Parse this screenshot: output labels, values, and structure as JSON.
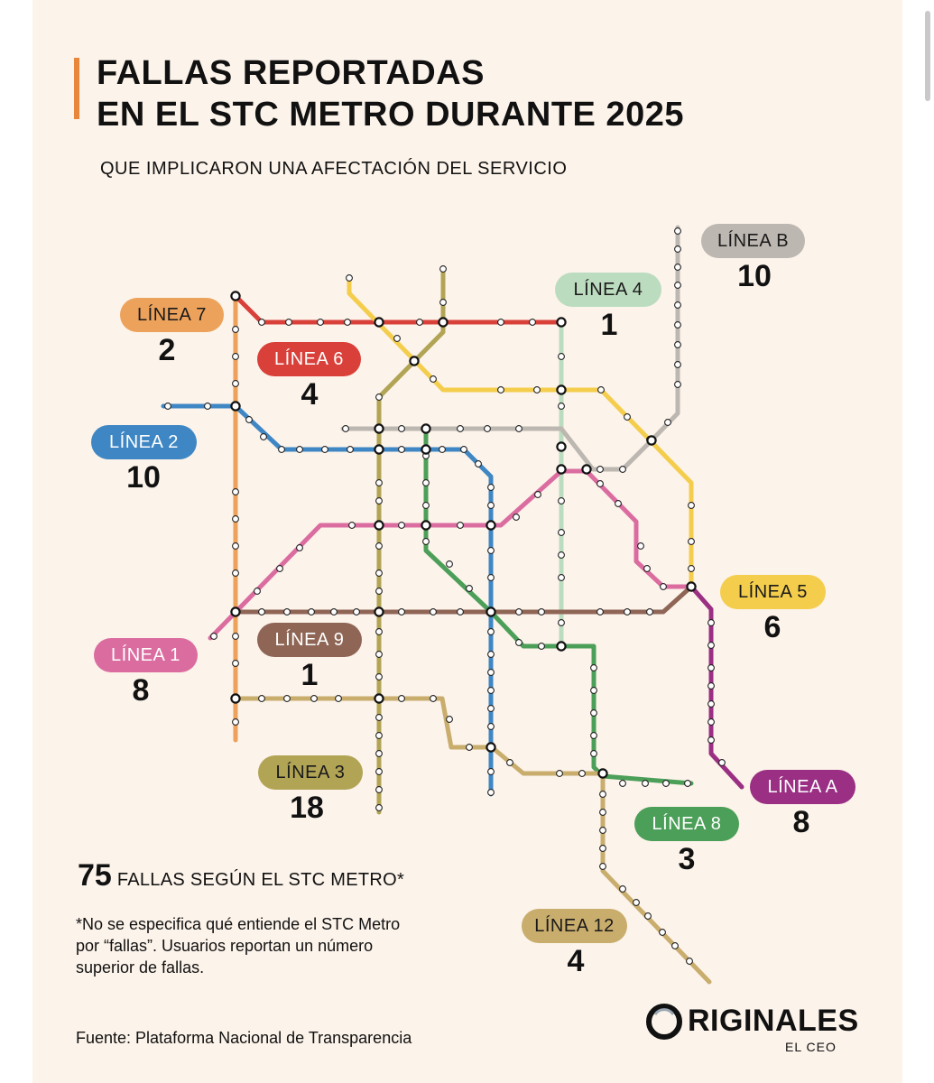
{
  "title_line1": "FALLAS REPORTADAS",
  "title_line2": "EN EL STC METRO DURANTE 2025",
  "subtitle": "QUE IMPLICARON UNA AFECTACIÓN DEL SERVICIO",
  "lines": [
    {
      "id": "b",
      "label": "LÍNEA B",
      "count": "10",
      "color": "#bdb7b1",
      "text_color": "#1a1a1a"
    },
    {
      "id": "4",
      "label": "LÍNEA 4",
      "count": "1",
      "color": "#bcdcbf",
      "text_color": "#1a1a1a"
    },
    {
      "id": "7",
      "label": "LÍNEA 7",
      "count": "2",
      "color": "#eda25b",
      "text_color": "#1a1a1a"
    },
    {
      "id": "6",
      "label": "LÍNEA 6",
      "count": "4",
      "color": "#d9403a",
      "text_color": "#ffffff"
    },
    {
      "id": "2",
      "label": "LÍNEA 2",
      "count": "10",
      "color": "#3f87c4",
      "text_color": "#ffffff"
    },
    {
      "id": "5",
      "label": "LÍNEA 5",
      "count": "6",
      "color": "#f4cd4c",
      "text_color": "#1a1a1a"
    },
    {
      "id": "9",
      "label": "LÍNEA 9",
      "count": "1",
      "color": "#8f6656",
      "text_color": "#ffffff"
    },
    {
      "id": "1",
      "label": "LÍNEA 1",
      "count": "8",
      "color": "#db6ca0",
      "text_color": "#ffffff"
    },
    {
      "id": "a",
      "label": "LÍNEA A",
      "count": "8",
      "color": "#9a2f83",
      "text_color": "#ffffff"
    },
    {
      "id": "3",
      "label": "LÍNEA 3",
      "count": "18",
      "color": "#b2a455",
      "text_color": "#1a1a1a"
    },
    {
      "id": "8",
      "label": "LÍNEA 8",
      "count": "3",
      "color": "#4c9f58",
      "text_color": "#ffffff"
    },
    {
      "id": "12",
      "label": "LÍNEA 12",
      "count": "4",
      "color": "#c9ad6d",
      "text_color": "#1a1a1a"
    }
  ],
  "total_number": "75",
  "total_text": "FALLAS SEGÚN EL STC METRO*",
  "note": "*No se especifica qué entiende el STC Metro por “fallas”. Usuarios reportan un número superior de fallas.",
  "source": "Fuente: Plataforma Nacional de Transparencia",
  "brand_name": "RIGINALES",
  "brand_sub": "EL CEO",
  "accent_color": "#e8873c",
  "background_color": "#fcf3ea"
}
